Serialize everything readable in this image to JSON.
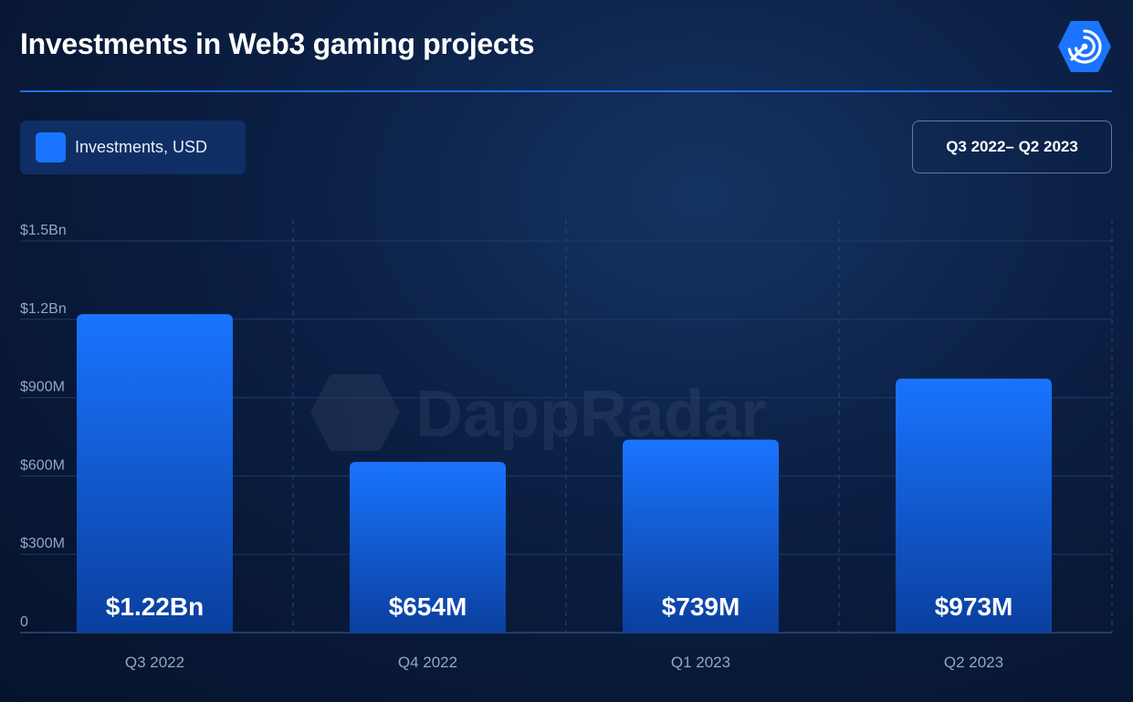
{
  "header": {
    "title": "Investments in Web3 gaming projects",
    "logo_icon": "dappradar-logo-icon"
  },
  "legend": {
    "label": "Investments, USD",
    "color": "#1a74ff"
  },
  "period": {
    "label": "Q3 2022– Q2 2023"
  },
  "watermark": {
    "text": "DappRadar"
  },
  "chart_data": {
    "type": "bar",
    "categories": [
      "Q3 2022",
      "Q4 2022",
      "Q1 2023",
      "Q2 2023"
    ],
    "series": [
      {
        "name": "Investments, USD",
        "values": [
          1220000000,
          654000000,
          739000000,
          973000000
        ]
      }
    ],
    "data_labels": [
      "$1.22Bn",
      "$654M",
      "$739M",
      "$973M"
    ],
    "y_ticks": [
      {
        "value": 0,
        "label": "0"
      },
      {
        "value": 300000000,
        "label": "$300M"
      },
      {
        "value": 600000000,
        "label": "$600M"
      },
      {
        "value": 900000000,
        "label": "$900M"
      },
      {
        "value": 1200000000,
        "label": "$1.2Bn"
      },
      {
        "value": 1500000000,
        "label": "$1.5Bn"
      }
    ],
    "ylim": [
      0,
      1500000000
    ],
    "grid": true,
    "legend_position": "top-left",
    "bar_color": "#1a74ff"
  }
}
